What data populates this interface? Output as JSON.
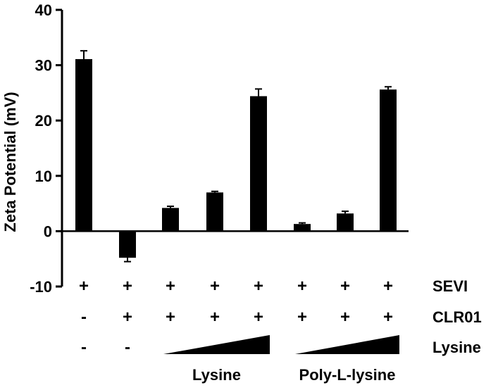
{
  "chart_data": {
    "type": "bar",
    "ylabel": "Zeta Potential (mV)",
    "xlabel": "",
    "title": "",
    "ylim": [
      -10,
      40
    ],
    "yticks": [
      -10,
      0,
      10,
      20,
      30,
      40
    ],
    "grid": false,
    "bar_color": "#000000",
    "values": [
      31.1,
      -4.8,
      4.2,
      7.0,
      24.4,
      1.3,
      3.2,
      25.6
    ],
    "errors": [
      1.5,
      0.7,
      0.3,
      0.2,
      1.3,
      0.2,
      0.4,
      0.5
    ],
    "rows": [
      {
        "label": "SEVI",
        "signs": [
          "+",
          "+",
          "+",
          "+",
          "+",
          "+",
          "+",
          "+"
        ]
      },
      {
        "label": "CLR01",
        "signs": [
          "-",
          "+",
          "+",
          "+",
          "+",
          "+",
          "+",
          "+"
        ]
      },
      {
        "label": "Lysine",
        "signs": [
          "-",
          "-",
          "",
          "",
          "",
          "",
          "",
          ""
        ]
      }
    ],
    "gradients": [
      {
        "from_bar": 2,
        "to_bar": 4,
        "label": "Lysine"
      },
      {
        "from_bar": 5,
        "to_bar": 7,
        "label": "Poly-L-lysine"
      }
    ]
  }
}
